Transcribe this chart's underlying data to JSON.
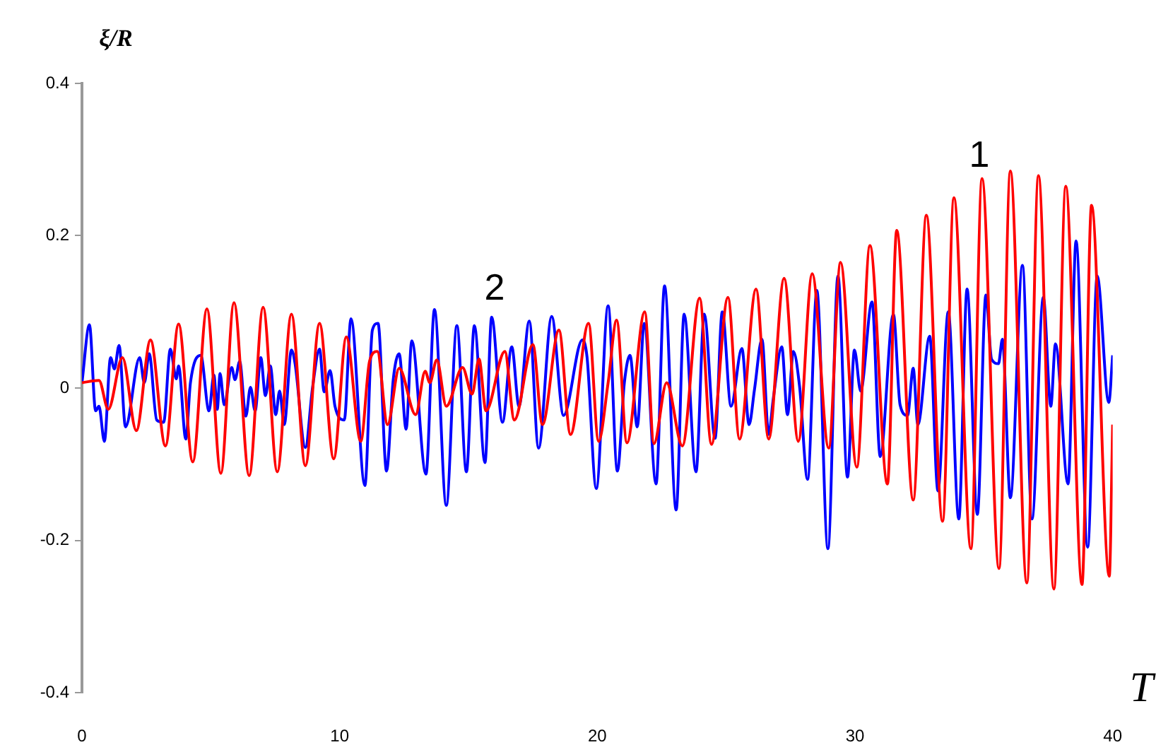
{
  "chart_data": {
    "type": "line",
    "xlabel": "T",
    "ylabel": "ξ/R",
    "xlim": [
      0,
      40
    ],
    "xticks": [
      0,
      10,
      20,
      30,
      40
    ],
    "ylim": [
      -0.4,
      0.4
    ],
    "yticks": [
      -0.4,
      -0.2,
      0,
      0.2,
      0.4
    ],
    "grid": false,
    "legend": false,
    "marker": "none",
    "line_style": "solid",
    "annotations": [
      "1",
      "2"
    ],
    "series": [
      {
        "color": "#ff0000",
        "x": [
          0,
          0.66,
          1.02,
          1.57,
          2.11,
          2.66,
          3.24,
          3.75,
          4.3,
          4.85,
          5.39,
          5.9,
          6.49,
          7.03,
          7.58,
          8.13,
          8.67,
          9.22,
          9.77,
          10.26,
          10.82,
          11.16,
          11.46,
          11.86,
          12.31,
          12.95,
          13.32,
          13.5,
          13.77,
          14.14,
          14.77,
          15.14,
          15.41,
          15.68,
          16.41,
          16.78,
          17.5,
          17.87,
          18.51,
          18.96,
          19.66,
          20.05,
          20.42,
          20.75,
          21.15,
          21.84,
          22.2,
          22.69,
          23.3,
          23.97,
          24.43,
          25.07,
          25.52,
          26.16,
          26.65,
          27.25,
          27.8,
          28.34,
          28.98,
          29.44,
          30.07,
          30.58,
          31.26,
          31.62,
          32.26,
          32.77,
          33.4,
          33.84,
          34.5,
          34.93,
          35.59,
          36.03,
          36.67,
          37.12,
          37.72,
          38.18,
          38.81,
          39.18,
          39.87,
          40
        ],
        "values": [
          0.007,
          0.01,
          -0.028,
          0.04,
          -0.056,
          0.063,
          -0.076,
          0.084,
          -0.097,
          0.104,
          -0.112,
          0.112,
          -0.115,
          0.106,
          -0.11,
          0.097,
          -0.102,
          0.085,
          -0.093,
          0.067,
          -0.07,
          0.035,
          0.048,
          -0.048,
          0.026,
          -0.035,
          0.022,
          0.007,
          0.037,
          -0.024,
          0.027,
          -0.008,
          0.038,
          -0.03,
          0.048,
          -0.042,
          0.057,
          -0.048,
          0.076,
          -0.061,
          0.085,
          -0.07,
          0.007,
          0.089,
          -0.072,
          0.1,
          -0.073,
          0.007,
          -0.076,
          0.118,
          -0.074,
          0.119,
          -0.067,
          0.13,
          -0.067,
          0.144,
          -0.07,
          0.15,
          -0.079,
          0.165,
          -0.104,
          0.187,
          -0.126,
          0.207,
          -0.147,
          0.227,
          -0.175,
          0.25,
          -0.211,
          0.275,
          -0.237,
          0.285,
          -0.256,
          0.279,
          -0.264,
          0.265,
          -0.258,
          0.24,
          -0.247,
          -0.048
        ]
      },
      {
        "color": "#0000ff",
        "x": [
          0,
          0.29,
          0.53,
          0.66,
          0.87,
          1.11,
          1.26,
          1.44,
          1.69,
          2.24,
          2.42,
          2.61,
          2.9,
          3.17,
          3.43,
          3.66,
          3.75,
          4.03,
          4.21,
          4.61,
          4.93,
          5.12,
          5.25,
          5.36,
          5.52,
          5.81,
          5.94,
          6.12,
          6.36,
          6.54,
          6.72,
          6.94,
          7.12,
          7.31,
          7.52,
          7.67,
          7.85,
          8.13,
          8.27,
          8.67,
          8.95,
          9.22,
          9.4,
          9.63,
          9.82,
          10.18,
          10.44,
          10.98,
          11.27,
          11.49,
          11.82,
          12.08,
          12.31,
          12.58,
          12.8,
          13.35,
          13.68,
          14.14,
          14.55,
          14.92,
          15.23,
          15.64,
          15.9,
          16.32,
          16.68,
          16.96,
          17.36,
          17.72,
          18.23,
          18.69,
          19.42,
          19.6,
          19.96,
          20.42,
          20.78,
          21.05,
          21.27,
          21.55,
          21.82,
          22.28,
          22.61,
          23.06,
          23.37,
          23.83,
          24.15,
          24.57,
          24.85,
          25.19,
          25.61,
          25.89,
          26.1,
          26.39,
          26.65,
          26.83,
          27.16,
          27.38,
          27.61,
          27.85,
          28.16,
          28.52,
          28.95,
          29.34,
          29.71,
          29.98,
          30.22,
          30.66,
          30.98,
          31.49,
          31.75,
          32.04,
          32.26,
          32.44,
          32.9,
          33.22,
          33.62,
          34.03,
          34.35,
          34.75,
          35.08,
          35.3,
          35.57,
          35.72,
          36.03,
          36.5,
          36.87,
          37.31,
          37.6,
          37.78,
          38.27,
          38.58,
          39.03,
          39.4,
          39.85,
          40
        ],
        "values": [
          0.007,
          0.083,
          -0.03,
          -0.024,
          -0.07,
          0.04,
          0.025,
          0.056,
          -0.051,
          0.04,
          0.007,
          0.045,
          -0.042,
          -0.045,
          0.051,
          0.012,
          0.029,
          -0.067,
          0.007,
          0.043,
          -0.03,
          0.017,
          -0.028,
          0.019,
          -0.022,
          0.027,
          0.011,
          0.035,
          -0.037,
          0.001,
          -0.03,
          0.04,
          -0.01,
          0.029,
          -0.035,
          -0.004,
          -0.048,
          0.05,
          0.032,
          -0.078,
          0.001,
          0.051,
          -0.005,
          0.023,
          -0.024,
          -0.042,
          0.091,
          -0.128,
          0.076,
          0.085,
          -0.109,
          0.011,
          0.045,
          -0.054,
          0.062,
          -0.113,
          0.103,
          -0.154,
          0.082,
          -0.11,
          0.082,
          -0.098,
          0.093,
          -0.045,
          0.054,
          -0.024,
          0.088,
          -0.079,
          0.094,
          -0.036,
          0.063,
          0.041,
          -0.132,
          0.108,
          -0.109,
          0.007,
          0.043,
          -0.051,
          0.085,
          -0.126,
          0.134,
          -0.16,
          0.097,
          -0.11,
          0.097,
          -0.066,
          0.1,
          -0.024,
          0.052,
          -0.048,
          -0.002,
          0.064,
          -0.061,
          -0.014,
          0.054,
          -0.035,
          0.048,
          0.002,
          -0.12,
          0.128,
          -0.211,
          0.147,
          -0.117,
          0.05,
          -0.004,
          0.113,
          -0.09,
          0.097,
          -0.022,
          -0.036,
          0.026,
          -0.048,
          0.068,
          -0.135,
          0.1,
          -0.172,
          0.13,
          -0.166,
          0.122,
          0.038,
          0.032,
          0.064,
          -0.144,
          0.161,
          -0.172,
          0.119,
          -0.024,
          0.058,
          -0.126,
          0.193,
          -0.209,
          0.147,
          -0.019,
          0.043
        ]
      }
    ]
  }
}
